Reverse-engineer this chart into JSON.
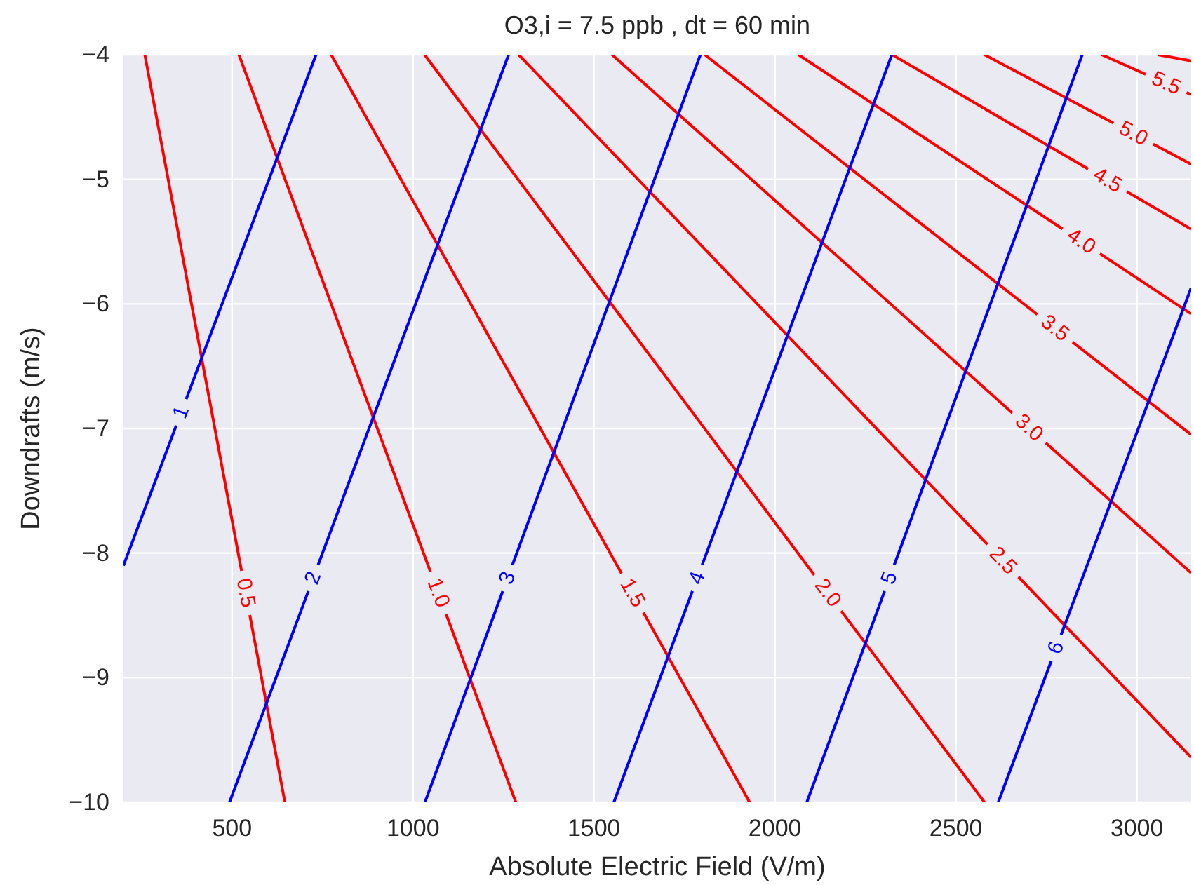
{
  "chart_data": {
    "type": "line",
    "title": "O3,i = 7.5 ppb , dt = 60 min",
    "xlabel": "Absolute Electric Field (V/m)",
    "ylabel": "Downdrafts (m/s)",
    "xlim": [
      200,
      3150
    ],
    "ylim": [
      -10,
      -4
    ],
    "xticks": [
      500,
      1000,
      1500,
      2000,
      2500,
      3000
    ],
    "yticks": [
      {
        "value": -10,
        "label": "−10"
      },
      {
        "value": -9,
        "label": "−9"
      },
      {
        "value": -8,
        "label": "−8"
      },
      {
        "value": -7,
        "label": "−7"
      },
      {
        "value": -6,
        "label": "−6"
      },
      {
        "value": -5,
        "label": "−5"
      },
      {
        "value": -4,
        "label": "−4"
      }
    ],
    "grid": true,
    "marker": "none",
    "line_style": "solid",
    "series": [
      {
        "name": "0.5",
        "color": "#ff0000",
        "x": [
          259,
          646
        ],
        "values": [
          -4,
          -10
        ]
      },
      {
        "name": "1.0",
        "color": "#ff0000",
        "x": [
          519,
          1284
        ],
        "values": [
          -4,
          -10
        ]
      },
      {
        "name": "1.5",
        "color": "#ff0000",
        "x": [
          774,
          1930
        ],
        "values": [
          -4,
          -10
        ]
      },
      {
        "name": "2.0",
        "color": "#ff0000",
        "x": [
          1032,
          2579
        ],
        "values": [
          -4,
          -10
        ]
      },
      {
        "name": "2.5",
        "color": "#ff0000",
        "x": [
          1292,
          3150
        ],
        "values": [
          -4,
          -9.64
        ]
      },
      {
        "name": "3.0",
        "color": "#ff0000",
        "x": [
          1550,
          3150
        ],
        "values": [
          -4,
          -8.16
        ]
      },
      {
        "name": "3.5",
        "color": "#ff0000",
        "x": [
          1806,
          3150
        ],
        "values": [
          -4,
          -7.05
        ]
      },
      {
        "name": "4.0",
        "color": "#ff0000",
        "x": [
          2065,
          3150
        ],
        "values": [
          -4,
          -6.08
        ]
      },
      {
        "name": "4.5",
        "color": "#ff0000",
        "x": [
          2324,
          3150
        ],
        "values": [
          -4,
          -5.4
        ]
      },
      {
        "name": "5.0",
        "color": "#ff0000",
        "x": [
          2579,
          3150
        ],
        "values": [
          -4,
          -4.88
        ]
      },
      {
        "name": "5.5",
        "color": "#ff0000",
        "x": [
          2903,
          3150
        ],
        "values": [
          -4,
          -4.32
        ]
      },
      {
        "color": "#ff0000",
        "x": [
          3058,
          3150
        ],
        "values": [
          -4,
          -4.05
        ]
      },
      {
        "name": "1",
        "color": "#0000ff",
        "x": [
          200,
          732
        ],
        "values": [
          -8.1,
          -4
        ]
      },
      {
        "name": "2",
        "color": "#0000ff",
        "x": [
          493,
          1264
        ],
        "values": [
          -10,
          -4
        ]
      },
      {
        "name": "3",
        "color": "#0000ff",
        "x": [
          1033,
          1794
        ],
        "values": [
          -10,
          -4
        ]
      },
      {
        "name": "4",
        "color": "#0000ff",
        "x": [
          1555,
          2323
        ],
        "values": [
          -10,
          -4
        ]
      },
      {
        "name": "5",
        "color": "#0000ff",
        "x": [
          2088,
          2849
        ],
        "values": [
          -10,
          -4
        ]
      },
      {
        "name": "6",
        "color": "#0000ff",
        "x": [
          2617,
          3150
        ],
        "values": [
          -10,
          -5.87
        ]
      }
    ]
  }
}
